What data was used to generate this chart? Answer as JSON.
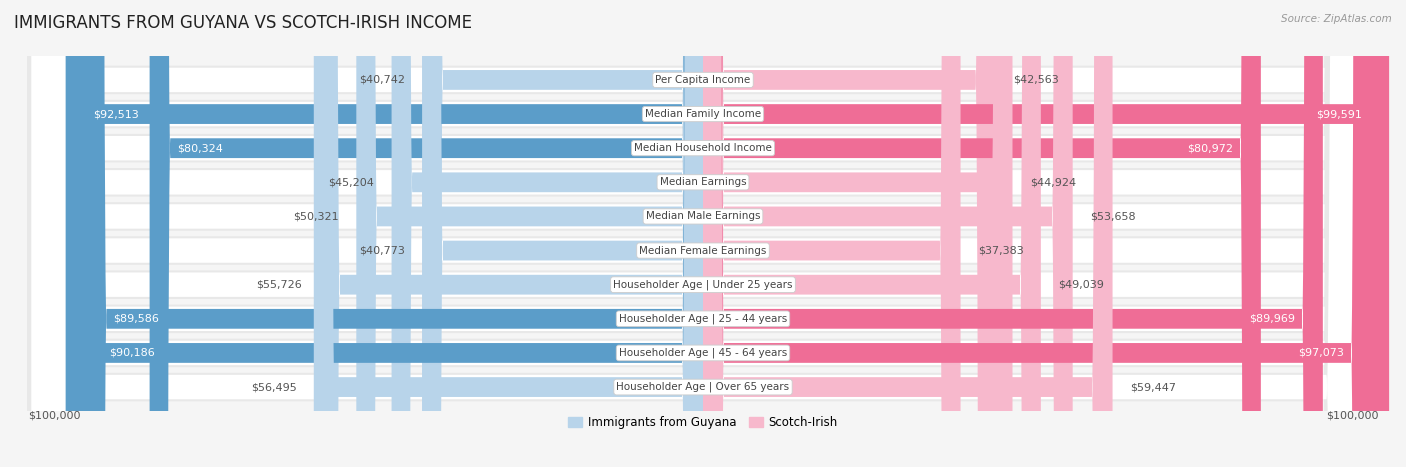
{
  "title": "IMMIGRANTS FROM GUYANA VS SCOTCH-IRISH INCOME",
  "source": "Source: ZipAtlas.com",
  "categories": [
    "Per Capita Income",
    "Median Family Income",
    "Median Household Income",
    "Median Earnings",
    "Median Male Earnings",
    "Median Female Earnings",
    "Householder Age | Under 25 years",
    "Householder Age | 25 - 44 years",
    "Householder Age | 45 - 64 years",
    "Householder Age | Over 65 years"
  ],
  "guyana_values": [
    40742,
    92513,
    80324,
    45204,
    50321,
    40773,
    55726,
    89586,
    90186,
    56495
  ],
  "scotch_irish_values": [
    42563,
    99591,
    80972,
    44924,
    53658,
    37383,
    49039,
    89969,
    97073,
    59447
  ],
  "guyana_labels": [
    "$40,742",
    "$92,513",
    "$80,324",
    "$45,204",
    "$50,321",
    "$40,773",
    "$55,726",
    "$89,586",
    "$90,186",
    "$56,495"
  ],
  "scotch_labels": [
    "$42,563",
    "$99,591",
    "$80,972",
    "$44,924",
    "$53,658",
    "$37,383",
    "$49,039",
    "$89,969",
    "$97,073",
    "$59,447"
  ],
  "max_value": 100000,
  "guyana_color_light": "#b8d4ea",
  "guyana_color_dark": "#5b9dc9",
  "scotch_color_light": "#f7b8cc",
  "scotch_color_dark": "#ef6d96",
  "dark_threshold": 70000,
  "row_bg": "#e8e8e8",
  "row_bg_inner": "#f2f2f2",
  "fig_bg": "#f5f5f5",
  "title_fontsize": 12,
  "label_fontsize": 8,
  "category_fontsize": 7.5,
  "legend_fontsize": 8.5,
  "xlabel_left": "$100,000",
  "xlabel_right": "$100,000"
}
